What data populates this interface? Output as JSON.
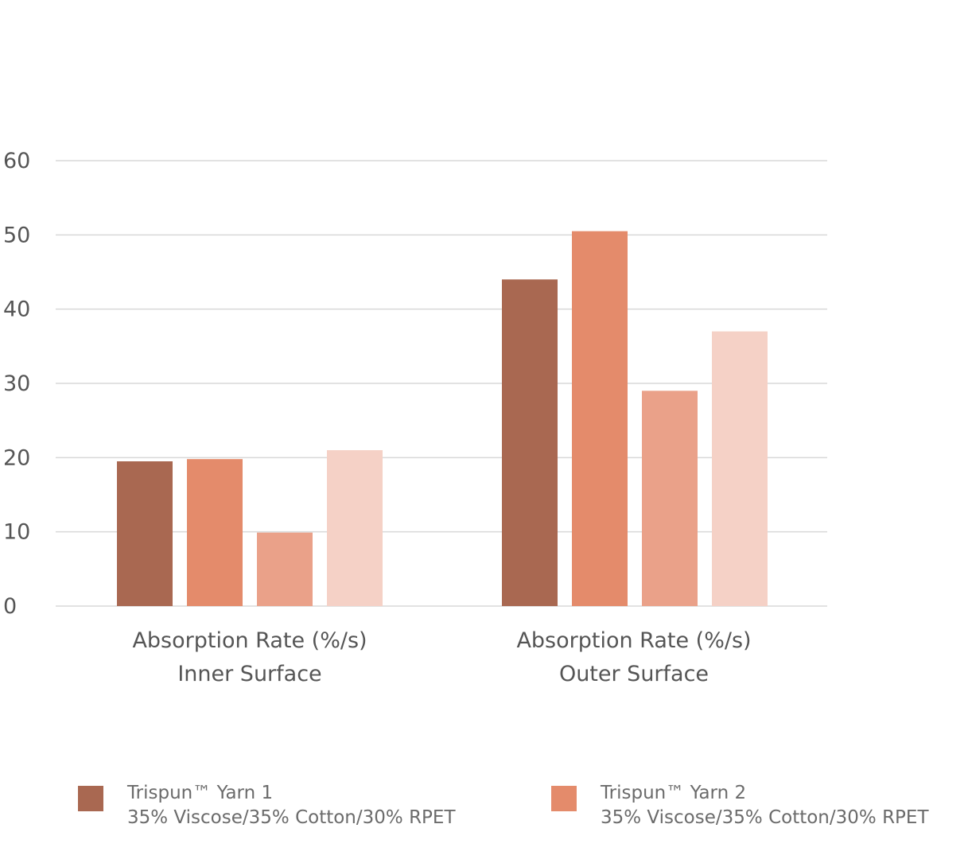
{
  "chart_data": {
    "type": "bar",
    "categories": [
      [
        "Absorption Rate (%/s)",
        "Inner Surface"
      ],
      [
        "Absorption Rate (%/s)",
        "Outer Surface"
      ]
    ],
    "series": [
      {
        "name": "Trispun™ Yarn 1",
        "description": "35% Viscose/35% Cotton/30% RPET",
        "color": "#a96851",
        "values": [
          19.5,
          44
        ]
      },
      {
        "name": "Trispun™ Yarn 2",
        "description": "35% Viscose/35% Cotton/30% RPET",
        "color": "#e48b6b",
        "values": [
          19.8,
          50.5
        ]
      },
      {
        "color": "#eaa189",
        "values": [
          9.9,
          29
        ]
      },
      {
        "color": "#f5d1c6",
        "values": [
          21,
          37
        ]
      }
    ],
    "y_ticks": [
      "0",
      "10",
      "20",
      "30",
      "40",
      "50",
      "60"
    ],
    "ylim": [
      0,
      60
    ],
    "grid": true,
    "legend_position": "bottom",
    "title": "",
    "xlabel": "",
    "ylabel": ""
  },
  "legend": [
    {
      "line1": "Trispun™ Yarn 1",
      "line2": "35% Viscose/35% Cotton/30% RPET",
      "color": "#a96851"
    },
    {
      "line1": "Trispun™ Yarn 2",
      "line2": "35% Viscose/35% Cotton/30% RPET",
      "color": "#e48b6b"
    }
  ]
}
